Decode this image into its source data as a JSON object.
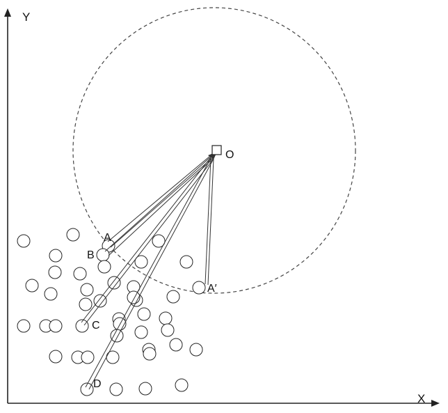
{
  "axes": {
    "x_label": "X",
    "y_label": "Y"
  },
  "labels": {
    "origin": "O",
    "point_a": "A",
    "point_b": "B",
    "point_c": "C",
    "point_d": "D",
    "point_a_prime": "A′"
  },
  "colors": {
    "stroke": "#222222",
    "background": "#ffffff"
  }
}
